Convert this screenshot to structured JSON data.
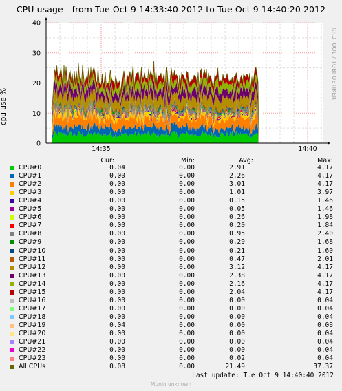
{
  "chart_data": {
    "type": "area",
    "title": "CPU usage - from Tue Oct  9 14:33:40 2012 to Tue Oct  9 14:40:20 2012",
    "ylabel": "cpu use %",
    "side_label": "RRDTOOL / TOBI OETIKER",
    "y_ticks": [
      "0",
      "10",
      "20",
      "30",
      "40"
    ],
    "ylim": [
      0,
      40
    ],
    "x_ticks": [
      "14:35",
      "14:40"
    ],
    "stacked": true,
    "series": [
      {
        "name": "CPU#0",
        "color": "#00cc00",
        "cur": "0.04",
        "min": "0.00",
        "avg": "2.91",
        "max": "4.17"
      },
      {
        "name": "CPU#1",
        "color": "#0066b3",
        "cur": "0.00",
        "min": "0.00",
        "avg": "2.26",
        "max": "4.17"
      },
      {
        "name": "CPU#2",
        "color": "#ff8000",
        "cur": "0.00",
        "min": "0.00",
        "avg": "3.01",
        "max": "4.17"
      },
      {
        "name": "CPU#3",
        "color": "#ffcc00",
        "cur": "0.00",
        "min": "0.00",
        "avg": "1.01",
        "max": "3.97"
      },
      {
        "name": "CPU#4",
        "color": "#330099",
        "cur": "0.00",
        "min": "0.00",
        "avg": "0.15",
        "max": "1.46"
      },
      {
        "name": "CPU#5",
        "color": "#990099",
        "cur": "0.00",
        "min": "0.00",
        "avg": "0.05",
        "max": "1.46"
      },
      {
        "name": "CPU#6",
        "color": "#ccff00",
        "cur": "0.00",
        "min": "0.00",
        "avg": "0.26",
        "max": "1.98"
      },
      {
        "name": "CPU#7",
        "color": "#ff0000",
        "cur": "0.00",
        "min": "0.00",
        "avg": "0.20",
        "max": "1.84"
      },
      {
        "name": "CPU#8",
        "color": "#808080",
        "cur": "0.00",
        "min": "0.00",
        "avg": "0.95",
        "max": "2.40"
      },
      {
        "name": "CPU#9",
        "color": "#008f00",
        "cur": "0.00",
        "min": "0.00",
        "avg": "0.29",
        "max": "1.68"
      },
      {
        "name": "CPU#10",
        "color": "#00487d",
        "cur": "0.00",
        "min": "0.00",
        "avg": "0.21",
        "max": "1.60"
      },
      {
        "name": "CPU#11",
        "color": "#b35a00",
        "cur": "0.00",
        "min": "0.00",
        "avg": "0.47",
        "max": "2.01"
      },
      {
        "name": "CPU#12",
        "color": "#b38f00",
        "cur": "0.00",
        "min": "0.00",
        "avg": "3.12",
        "max": "4.17"
      },
      {
        "name": "CPU#13",
        "color": "#6b006b",
        "cur": "0.00",
        "min": "0.00",
        "avg": "2.38",
        "max": "4.17"
      },
      {
        "name": "CPU#14",
        "color": "#8fb300",
        "cur": "0.00",
        "min": "0.00",
        "avg": "2.16",
        "max": "4.17"
      },
      {
        "name": "CPU#15",
        "color": "#b30000",
        "cur": "0.00",
        "min": "0.00",
        "avg": "2.04",
        "max": "4.17"
      },
      {
        "name": "CPU#16",
        "color": "#bebebe",
        "cur": "0.00",
        "min": "0.00",
        "avg": "0.00",
        "max": "0.04"
      },
      {
        "name": "CPU#17",
        "color": "#80ff80",
        "cur": "0.00",
        "min": "0.00",
        "avg": "0.00",
        "max": "0.04"
      },
      {
        "name": "CPU#18",
        "color": "#80c9ff",
        "cur": "0.00",
        "min": "0.00",
        "avg": "0.00",
        "max": "0.04"
      },
      {
        "name": "CPU#19",
        "color": "#ffc080",
        "cur": "0.04",
        "min": "0.00",
        "avg": "0.00",
        "max": "0.08"
      },
      {
        "name": "CPU#20",
        "color": "#ffe680",
        "cur": "0.00",
        "min": "0.00",
        "avg": "0.00",
        "max": "0.04"
      },
      {
        "name": "CPU#21",
        "color": "#aa80ff",
        "cur": "0.00",
        "min": "0.00",
        "avg": "0.00",
        "max": "0.04"
      },
      {
        "name": "CPU#22",
        "color": "#ee00cc",
        "cur": "0.00",
        "min": "0.00",
        "avg": "0.00",
        "max": "0.04"
      },
      {
        "name": "CPU#23",
        "color": "#ff8080",
        "cur": "0.00",
        "min": "0.00",
        "avg": "0.02",
        "max": "0.04"
      }
    ],
    "total": {
      "name": "All CPUs",
      "color": "#666600",
      "cur": "0.08",
      "min": "0.00",
      "avg": "21.49",
      "max": "37.37"
    }
  },
  "legend_headers": {
    "cur": "Cur:",
    "min": "Min:",
    "avg": "Avg:",
    "max": "Max:"
  },
  "last_update": "Last update:  Tue Oct  9 14:40:40 2012",
  "footer": "Munin unknown"
}
